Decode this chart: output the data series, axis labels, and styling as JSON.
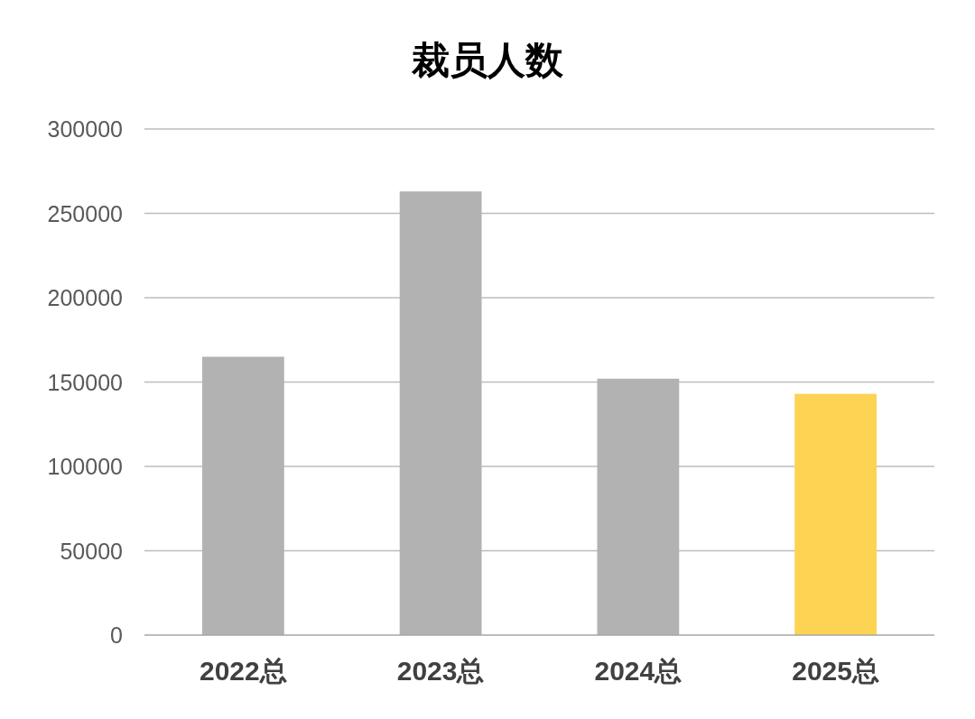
{
  "chart_data": {
    "type": "bar",
    "title": "裁员人数",
    "categories": [
      "2022总",
      "2023总",
      "2024总",
      "2025总"
    ],
    "values": [
      165000,
      263000,
      152000,
      143000
    ],
    "colors": [
      "#b2b2b2",
      "#b2b2b2",
      "#b2b2b2",
      "#fdd353"
    ],
    "ylim": [
      0,
      300000
    ],
    "yticks": [
      0,
      50000,
      100000,
      150000,
      200000,
      250000,
      300000
    ],
    "grid": "y"
  }
}
